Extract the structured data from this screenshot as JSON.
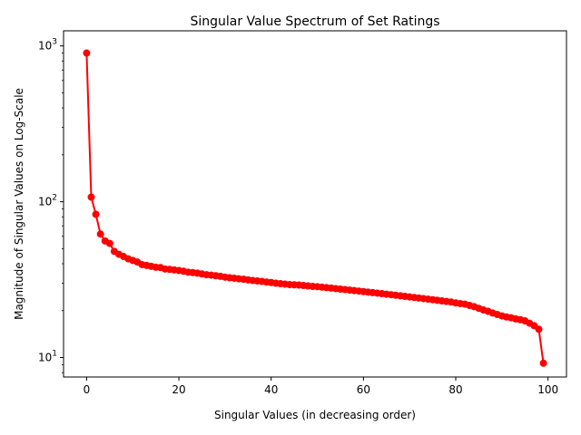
{
  "chart_data": {
    "type": "line",
    "title": "Singular Value Spectrum of Set Ratings",
    "xlabel": "Singular Values (in decreasing order)",
    "ylabel": "Magnitude of Singular Values on Log-Scale",
    "yscale": "log",
    "xlim": [
      -5,
      104
    ],
    "ylim": [
      7.5,
      1250
    ],
    "xticks": [
      0,
      20,
      40,
      60,
      80,
      100
    ],
    "yticks": [
      10,
      100,
      1000
    ],
    "ytick_labels": [
      {
        "base": "10",
        "exp": "1"
      },
      {
        "base": "10",
        "exp": "2"
      },
      {
        "base": "10",
        "exp": "3"
      }
    ],
    "grid": false,
    "series": [
      {
        "name": "singular values",
        "color": "#ff0000",
        "marker": "circle",
        "x": [
          0,
          1,
          2,
          3,
          4,
          5,
          6,
          7,
          8,
          9,
          10,
          11,
          12,
          13,
          14,
          15,
          16,
          17,
          18,
          19,
          20,
          21,
          22,
          23,
          24,
          25,
          26,
          27,
          28,
          29,
          30,
          31,
          32,
          33,
          34,
          35,
          36,
          37,
          38,
          39,
          40,
          41,
          42,
          43,
          44,
          45,
          46,
          47,
          48,
          49,
          50,
          51,
          52,
          53,
          54,
          55,
          56,
          57,
          58,
          59,
          60,
          61,
          62,
          63,
          64,
          65,
          66,
          67,
          68,
          69,
          70,
          71,
          72,
          73,
          74,
          75,
          76,
          77,
          78,
          79,
          80,
          81,
          82,
          83,
          84,
          85,
          86,
          87,
          88,
          89,
          90,
          91,
          92,
          93,
          94,
          95,
          96,
          97,
          98,
          99
        ],
        "values": [
          900,
          107,
          83,
          62,
          56,
          54,
          48,
          46,
          44.5,
          43,
          42,
          41,
          39.5,
          39,
          38.5,
          38,
          37.8,
          37,
          36.8,
          36.5,
          36.2,
          35.8,
          35.3,
          35.1,
          34.8,
          34.4,
          34,
          33.8,
          33.5,
          33.2,
          32.8,
          32.5,
          32.3,
          32,
          31.8,
          31.5,
          31.2,
          31,
          30.8,
          30.5,
          30.3,
          30,
          29.8,
          29.6,
          29.4,
          29.3,
          29.2,
          29,
          28.8,
          28.6,
          28.5,
          28.3,
          28.1,
          27.9,
          27.7,
          27.5,
          27.3,
          27.1,
          26.9,
          26.7,
          26.5,
          26.3,
          26.1,
          25.9,
          25.7,
          25.5,
          25.3,
          25.1,
          24.9,
          24.7,
          24.5,
          24.3,
          24.1,
          23.9,
          23.7,
          23.5,
          23.3,
          23.1,
          22.9,
          22.7,
          22.4,
          22.2,
          22,
          21.6,
          21.2,
          20.7,
          20.2,
          19.8,
          19.3,
          18.9,
          18.5,
          18.2,
          18,
          17.7,
          17.5,
          17.2,
          16.6,
          16,
          15.2,
          9.2
        ]
      }
    ]
  }
}
